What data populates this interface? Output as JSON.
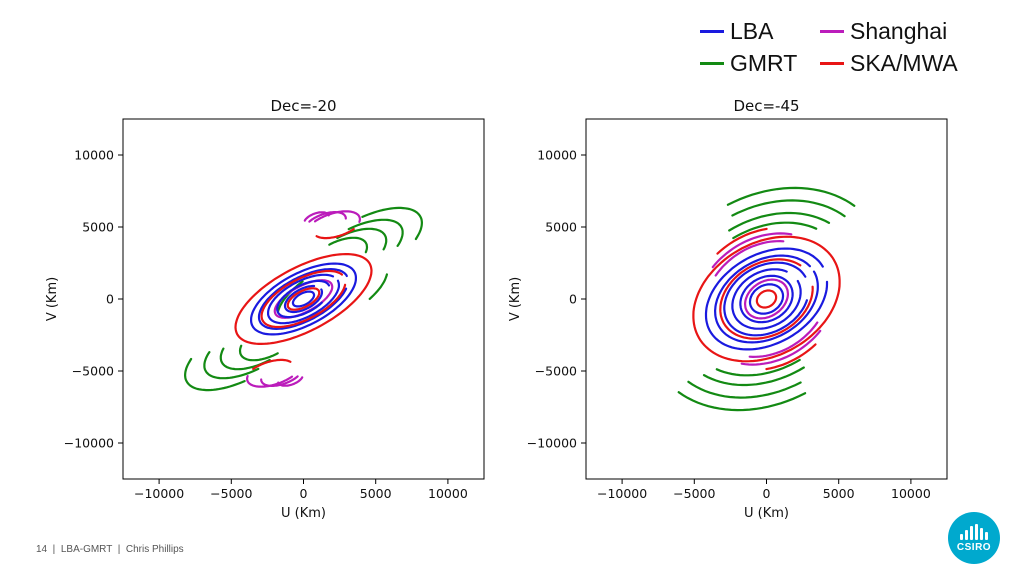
{
  "legend": [
    {
      "label": "LBA",
      "color": "#1a1adf"
    },
    {
      "label": "Shanghai",
      "color": "#bb1cbb"
    },
    {
      "label": "GMRT",
      "color": "#138a13"
    },
    {
      "label": "SKA/MWA",
      "color": "#e81515"
    }
  ],
  "footer": {
    "page_number": "14",
    "title": "LBA-GMRT",
    "author": "Chris Phillips"
  },
  "logo": {
    "text": "CSIRO"
  },
  "chart_data": [
    {
      "type": "scatter",
      "title": "Dec=-20",
      "xlabel": "U (Km)",
      "ylabel": "V (Km)",
      "xlim": [
        -12500,
        12500
      ],
      "ylim": [
        -12500,
        12500
      ],
      "xticks": [
        -10000,
        -5000,
        0,
        5000,
        10000
      ],
      "yticks": [
        -10000,
        -5000,
        0,
        5000,
        10000
      ],
      "xticklabels": [
        "−10000",
        "−5000",
        "0",
        "5000",
        "10000"
      ],
      "yticklabels": [
        "−10000",
        "−5000",
        "0",
        "5000",
        "10000"
      ],
      "grid": false,
      "series": [
        {
          "name": "GMRT",
          "color": "#138a13",
          "arcs": [
            {
              "cx": 4300,
              "cy": 3700,
              "a": 4300,
              "b": 1900,
              "rot": 28,
              "t0": -40,
              "t1": 80
            },
            {
              "cx": 3600,
              "cy": 3300,
              "a": 3600,
              "b": 1600,
              "rot": 28,
              "t0": -40,
              "t1": 85
            },
            {
              "cx": 3000,
              "cy": 3000,
              "a": 3000,
              "b": 1400,
              "rot": 28,
              "t0": -35,
              "t1": 90
            },
            {
              "cx": 2300,
              "cy": 2800,
              "a": 2300,
              "b": 1100,
              "rot": 28,
              "t0": -30,
              "t1": 90
            },
            {
              "cx": 2000,
              "cy": 400,
              "a": 4200,
              "b": 1800,
              "rot": 28,
              "t0": 110,
              "t1": 160
            },
            {
              "cx": 2000,
              "cy": 400,
              "a": 4200,
              "b": 1800,
              "rot": 28,
              "t0": -60,
              "t1": -20
            },
            {
              "cx": -4300,
              "cy": -3700,
              "a": 4300,
              "b": 1900,
              "rot": 28,
              "t0": 140,
              "t1": 260
            },
            {
              "cx": -3600,
              "cy": -3300,
              "a": 3600,
              "b": 1600,
              "rot": 28,
              "t0": 140,
              "t1": 265
            },
            {
              "cx": -3000,
              "cy": -3000,
              "a": 3000,
              "b": 1400,
              "rot": 28,
              "t0": 145,
              "t1": 270
            },
            {
              "cx": -2300,
              "cy": -2800,
              "a": 2300,
              "b": 1100,
              "rot": 28,
              "t0": 150,
              "t1": 270
            }
          ]
        },
        {
          "name": "Shanghai",
          "color": "#bb1cbb",
          "arcs": [
            {
              "cx": 2000,
              "cy": 5000,
              "a": 2000,
              "b": 900,
              "rot": 20,
              "t0": -20,
              "t1": 120
            },
            {
              "cx": 1500,
              "cy": 5200,
              "a": 1500,
              "b": 700,
              "rot": 20,
              "t0": -10,
              "t1": 130
            },
            {
              "cx": 900,
              "cy": 5500,
              "a": 900,
              "b": 450,
              "rot": 20,
              "t0": 0,
              "t1": 150
            },
            {
              "cx": -2000,
              "cy": -5000,
              "a": 2000,
              "b": 900,
              "rot": 20,
              "t0": 160,
              "t1": 300
            },
            {
              "cx": -1500,
              "cy": -5200,
              "a": 1500,
              "b": 700,
              "rot": 20,
              "t0": 170,
              "t1": 310
            },
            {
              "cx": -900,
              "cy": -5500,
              "a": 900,
              "b": 450,
              "rot": 20,
              "t0": 180,
              "t1": 330
            },
            {
              "cx": 0,
              "cy": 0,
              "a": 2200,
              "b": 900,
              "rot": 28,
              "t0": 0,
              "t1": 360
            }
          ]
        },
        {
          "name": "LBA",
          "color": "#1a1adf",
          "arcs": [
            {
              "cx": 0,
              "cy": 0,
              "a": 4000,
              "b": 1800,
              "rot": 28,
              "t0": 0,
              "t1": 360
            },
            {
              "cx": 0,
              "cy": 0,
              "a": 3400,
              "b": 1500,
              "rot": 28,
              "t0": 0,
              "t1": 330
            },
            {
              "cx": 0,
              "cy": 0,
              "a": 2700,
              "b": 1250,
              "rot": 28,
              "t0": 20,
              "t1": 360
            },
            {
              "cx": 0,
              "cy": 0,
              "a": 2000,
              "b": 950,
              "rot": 28,
              "t0": 0,
              "t1": 300
            },
            {
              "cx": 0,
              "cy": 0,
              "a": 1400,
              "b": 700,
              "rot": 28,
              "t0": 40,
              "t1": 360
            },
            {
              "cx": 0,
              "cy": 0,
              "a": 800,
              "b": 400,
              "rot": 28,
              "t0": 0,
              "t1": 360
            }
          ]
        },
        {
          "name": "SKA/MWA",
          "color": "#e81515",
          "arcs": [
            {
              "cx": 0,
              "cy": 0,
              "a": 5200,
              "b": 2200,
              "rot": 28,
              "t0": 0,
              "t1": 360
            },
            {
              "cx": 0,
              "cy": 0,
              "a": 3200,
              "b": 1400,
              "rot": 28,
              "t0": 10,
              "t1": 340
            },
            {
              "cx": 0,
              "cy": 0,
              "a": 1200,
              "b": 550,
              "rot": 28,
              "t0": 0,
              "t1": 360
            },
            {
              "cx": 2400,
              "cy": 5200,
              "a": 1800,
              "b": 800,
              "rot": 20,
              "t0": 200,
              "t1": 300
            },
            {
              "cx": -2400,
              "cy": -5200,
              "a": 1800,
              "b": 800,
              "rot": 20,
              "t0": 20,
              "t1": 120
            }
          ]
        }
      ]
    },
    {
      "type": "scatter",
      "title": "Dec=-45",
      "xlabel": "U (Km)",
      "ylabel": "V (Km)",
      "xlim": [
        -12500,
        12500
      ],
      "ylim": [
        -12500,
        12500
      ],
      "xticks": [
        -10000,
        -5000,
        0,
        5000,
        10000
      ],
      "yticks": [
        -10000,
        -5000,
        0,
        5000,
        10000
      ],
      "xticklabels": [
        "−10000",
        "−5000",
        "0",
        "5000",
        "10000"
      ],
      "yticklabels": [
        "−10000",
        "−5000",
        "0",
        "5000",
        "10000"
      ],
      "grid": false,
      "series": [
        {
          "name": "GMRT",
          "color": "#138a13",
          "arcs": [
            {
              "cx": 0,
              "cy": 0,
              "a": 9000,
              "b": 7000,
              "rot": 35,
              "t0": 15,
              "t1": 80
            },
            {
              "cx": 0,
              "cy": 0,
              "a": 8000,
              "b": 6200,
              "rot": 35,
              "t0": 15,
              "t1": 80
            },
            {
              "cx": 0,
              "cy": 0,
              "a": 7000,
              "b": 5400,
              "rot": 35,
              "t0": 20,
              "t1": 85
            },
            {
              "cx": 0,
              "cy": 0,
              "a": 6200,
              "b": 4800,
              "rot": 35,
              "t0": 25,
              "t1": 85
            },
            {
              "cx": 0,
              "cy": 0,
              "a": 9000,
              "b": 7000,
              "rot": 35,
              "t0": 195,
              "t1": 260
            },
            {
              "cx": 0,
              "cy": 0,
              "a": 8000,
              "b": 6200,
              "rot": 35,
              "t0": 195,
              "t1": 260
            },
            {
              "cx": 0,
              "cy": 0,
              "a": 7000,
              "b": 5400,
              "rot": 35,
              "t0": 200,
              "t1": 265
            },
            {
              "cx": 0,
              "cy": 0,
              "a": 6200,
              "b": 4800,
              "rot": 35,
              "t0": 205,
              "t1": 265
            }
          ]
        },
        {
          "name": "Shanghai",
          "color": "#bb1cbb",
          "arcs": [
            {
              "cx": 0,
              "cy": 0,
              "a": 5200,
              "b": 4200,
              "rot": 35,
              "t0": 40,
              "t1": 110
            },
            {
              "cx": 0,
              "cy": 0,
              "a": 4600,
              "b": 3700,
              "rot": 35,
              "t0": 45,
              "t1": 115
            },
            {
              "cx": 0,
              "cy": 0,
              "a": 5200,
              "b": 4200,
              "rot": 35,
              "t0": 220,
              "t1": 290
            },
            {
              "cx": 0,
              "cy": 0,
              "a": 4600,
              "b": 3700,
              "rot": 35,
              "t0": 225,
              "t1": 295
            },
            {
              "cx": 0,
              "cy": 0,
              "a": 1600,
              "b": 1200,
              "rot": 35,
              "t0": 0,
              "t1": 360
            }
          ]
        },
        {
          "name": "LBA",
          "color": "#1a1adf",
          "arcs": [
            {
              "cx": 0,
              "cy": 0,
              "a": 4500,
              "b": 3100,
              "rot": 30,
              "t0": 0,
              "t1": 340
            },
            {
              "cx": 0,
              "cy": 0,
              "a": 3800,
              "b": 2700,
              "rot": 30,
              "t0": 10,
              "t1": 360
            },
            {
              "cx": 0,
              "cy": 0,
              "a": 3100,
              "b": 2300,
              "rot": 30,
              "t0": 0,
              "t1": 320
            },
            {
              "cx": 0,
              "cy": 0,
              "a": 2500,
              "b": 1900,
              "rot": 30,
              "t0": 30,
              "t1": 360
            },
            {
              "cx": 0,
              "cy": 0,
              "a": 1900,
              "b": 1500,
              "rot": 30,
              "t0": 0,
              "t1": 360
            },
            {
              "cx": 0,
              "cy": 0,
              "a": 1200,
              "b": 950,
              "rot": 30,
              "t0": 0,
              "t1": 360
            }
          ]
        },
        {
          "name": "SKA/MWA",
          "color": "#e81515",
          "arcs": [
            {
              "cx": 0,
              "cy": 0,
              "a": 5400,
              "b": 3900,
              "rot": 30,
              "t0": 0,
              "t1": 360
            },
            {
              "cx": 0,
              "cy": 0,
              "a": 3400,
              "b": 2500,
              "rot": 30,
              "t0": 20,
              "t1": 340
            },
            {
              "cx": 0,
              "cy": 0,
              "a": 700,
              "b": 550,
              "rot": 30,
              "t0": 0,
              "t1": 360
            },
            {
              "cx": 0,
              "cy": 0,
              "a": 5600,
              "b": 4600,
              "rot": 35,
              "t0": 60,
              "t1": 100
            },
            {
              "cx": 0,
              "cy": 0,
              "a": 5600,
              "b": 4600,
              "rot": 35,
              "t0": 240,
              "t1": 280
            }
          ]
        }
      ]
    }
  ]
}
